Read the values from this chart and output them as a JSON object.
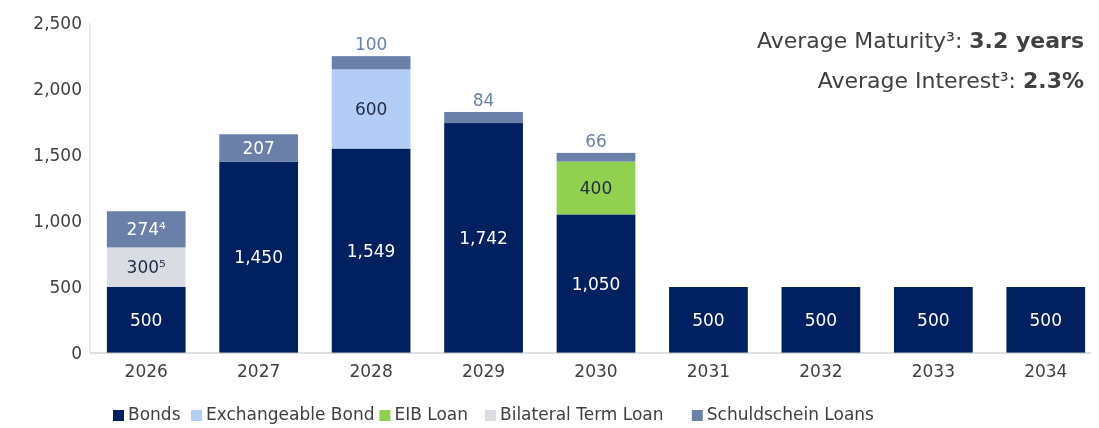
{
  "chart_data": {
    "type": "bar",
    "stacked": true,
    "categories": [
      "2026",
      "2027",
      "2028",
      "2029",
      "2030",
      "2031",
      "2032",
      "2033",
      "2034"
    ],
    "series": [
      {
        "name": "Bonds",
        "color": "#002060",
        "values": [
          500,
          1450,
          1549,
          1742,
          1050,
          500,
          500,
          500,
          500
        ],
        "value_labels": [
          "500",
          "1,450",
          "1,549",
          "1,742",
          "1,050",
          "500",
          "500",
          "500",
          "500"
        ]
      },
      {
        "name": "Exchangeable Bond",
        "color": "#b4cdf7",
        "values": [
          null,
          null,
          600,
          null,
          null,
          null,
          null,
          null,
          null
        ],
        "value_labels": [
          null,
          null,
          "600",
          null,
          null,
          null,
          null,
          null,
          null
        ]
      },
      {
        "name": "EIB Loan",
        "color": "#92d050",
        "values": [
          null,
          null,
          null,
          null,
          400,
          null,
          null,
          null,
          null
        ],
        "value_labels": [
          null,
          null,
          null,
          null,
          "400",
          null,
          null,
          null,
          null
        ]
      },
      {
        "name": "Bilateral Term Loan",
        "color": "#d9dde3",
        "values": [
          300,
          null,
          null,
          null,
          null,
          null,
          null,
          null,
          null
        ],
        "value_labels": [
          "300⁵",
          null,
          null,
          null,
          null,
          null,
          null,
          null,
          null
        ]
      },
      {
        "name": "Schuldschein Loans",
        "color": "#6a80a8",
        "values": [
          274,
          207,
          100,
          84,
          66,
          null,
          null,
          null,
          null
        ],
        "value_labels": [
          "274⁴",
          "207",
          "100",
          "84",
          "66",
          null,
          null,
          null,
          null
        ]
      }
    ],
    "ylim": [
      0,
      2500
    ],
    "yticks": [
      {
        "value": 0,
        "label": "0"
      },
      {
        "value": 500,
        "label": "500"
      },
      {
        "value": 1000,
        "label": "1,000"
      },
      {
        "value": 1500,
        "label": "1,500"
      },
      {
        "value": 2000,
        "label": "2,000"
      },
      {
        "value": 2500,
        "label": "2,500"
      }
    ],
    "legend": "bottom",
    "annotations": [
      "Average Maturity³: 3.2 years",
      "Average Interest³: 2.3%"
    ]
  }
}
